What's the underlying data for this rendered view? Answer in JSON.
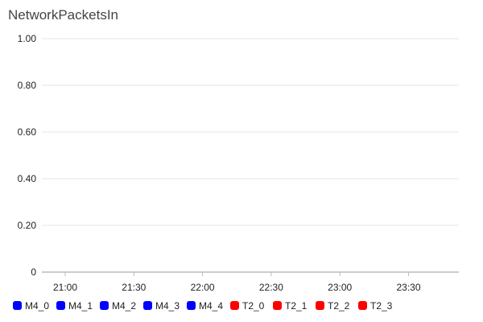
{
  "chart_data": {
    "type": "line",
    "title": "NetworkPacketsIn",
    "xlabel": "",
    "ylabel": "",
    "x_tick_labels": [
      "21:00",
      "21:30",
      "22:00",
      "22:30",
      "23:00",
      "23:30"
    ],
    "y_tick_labels": [
      "0",
      "0.20",
      "0.40",
      "0.60",
      "0.80",
      "1.00"
    ],
    "ylim": [
      0,
      1
    ],
    "grid": true,
    "legend_position": "bottom",
    "series": [
      {
        "name": "M4_0",
        "color": "#0000ff",
        "values": []
      },
      {
        "name": "M4_1",
        "color": "#0000ff",
        "values": []
      },
      {
        "name": "M4_2",
        "color": "#0000ff",
        "values": []
      },
      {
        "name": "M4_3",
        "color": "#0000ff",
        "values": []
      },
      {
        "name": "M4_4",
        "color": "#0000ff",
        "values": []
      },
      {
        "name": "T2_0",
        "color": "#ff0000",
        "values": []
      },
      {
        "name": "T2_1",
        "color": "#ff0000",
        "values": []
      },
      {
        "name": "T2_2",
        "color": "#ff0000",
        "values": []
      },
      {
        "name": "T2_3",
        "color": "#ff0000",
        "values": []
      }
    ]
  }
}
